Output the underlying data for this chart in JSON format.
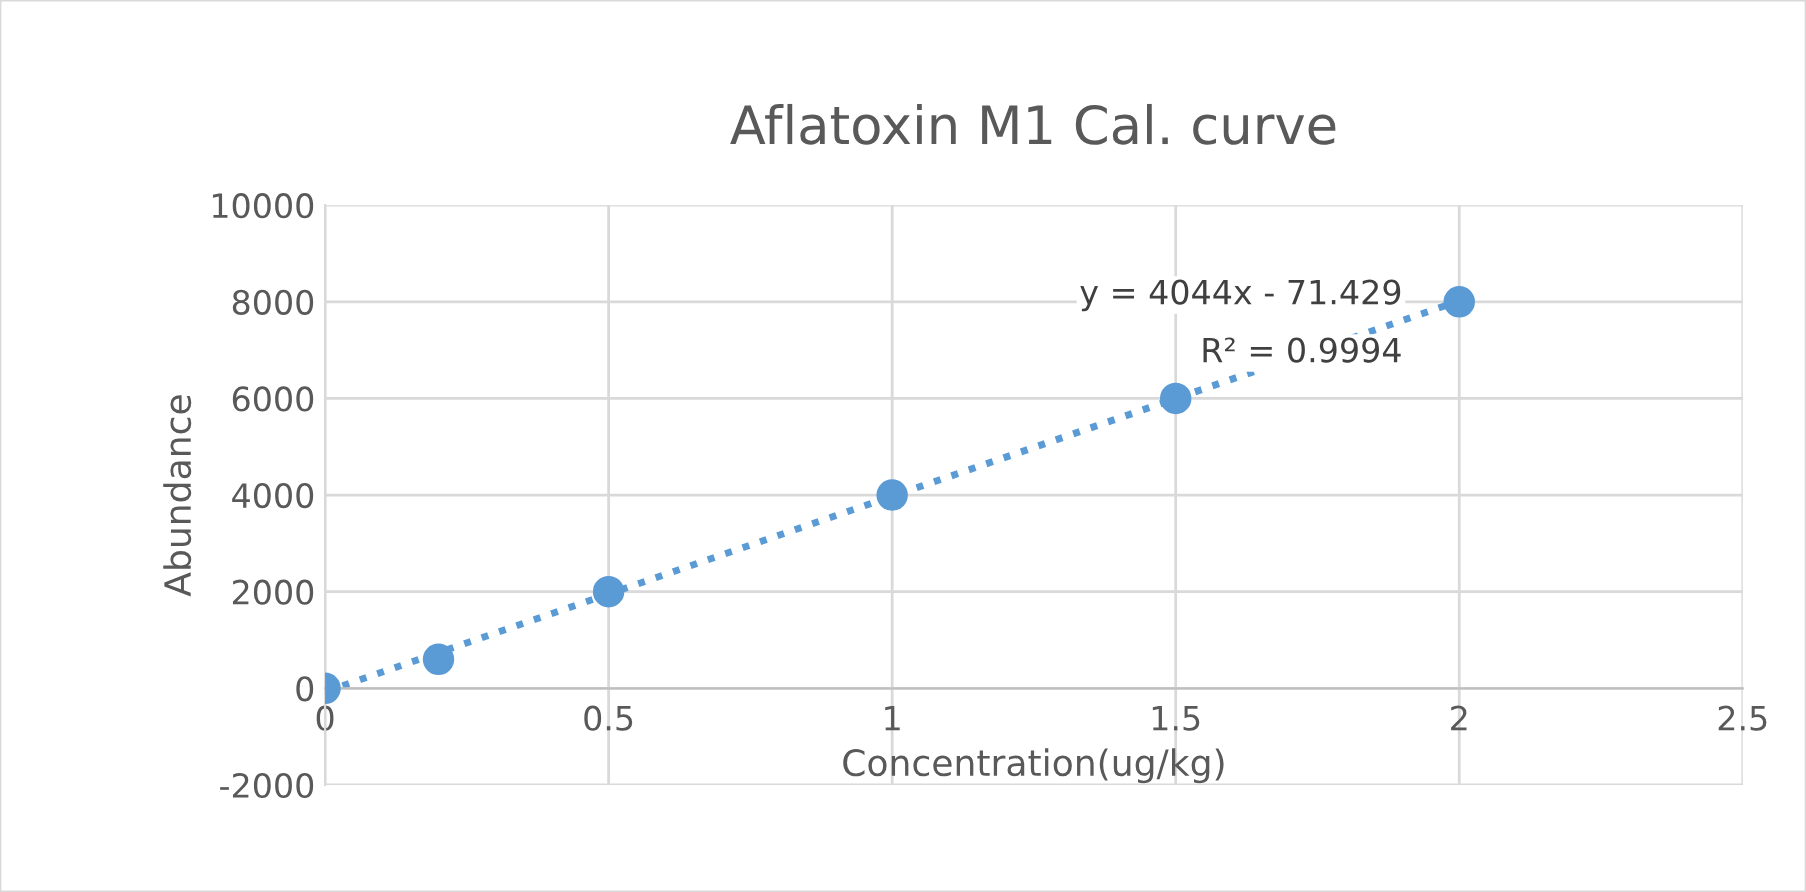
{
  "chart_data": {
    "type": "scatter",
    "title": "Aflatoxin M1 Cal. curve",
    "xlabel": "Concentration(ug/kg)",
    "ylabel": "Abundance",
    "x": [
      0,
      0.2,
      0.5,
      1,
      1.5,
      2
    ],
    "series": [
      {
        "color": "#5b9bd5",
        "values": [
          0,
          600,
          2000,
          4000,
          6000,
          8000
        ],
        "marker": "circle"
      },
      {
        "type": "line",
        "color": "#5b9bd5",
        "x": [
          0,
          2
        ],
        "values": [
          -70,
          8020
        ],
        "line_style": "dotted",
        "marker": "none"
      }
    ],
    "annotations": [
      "y = 4044x - 71.429",
      "R² = 0.9994"
    ],
    "xlim": [
      0,
      2.5
    ],
    "xticks": [
      0,
      0.5,
      1,
      1.5,
      2,
      2.5
    ],
    "ylim": [
      -2000,
      10000
    ],
    "yticks": [
      -2000,
      0,
      2000,
      4000,
      6000,
      8000,
      10000
    ],
    "grid": true,
    "legend": false
  }
}
